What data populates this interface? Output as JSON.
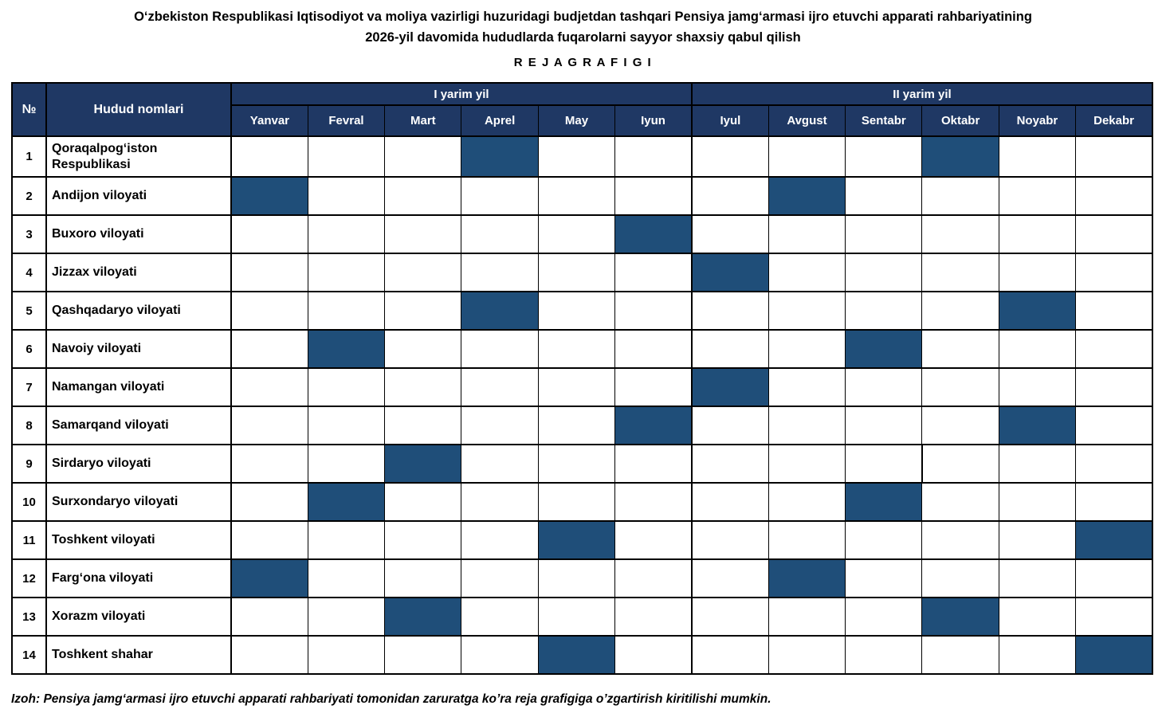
{
  "title": {
    "line1": "O‘zbekiston Respublikasi Iqtisodiyot va moliya vazirligi huzuridagi budjetdan tashqari Pensiya jamg‘armasi ijro etuvchi apparati rahbariyatining",
    "line2": "2026-yil davomida hududlarda fuqarolarni sayyor shaxsiy qabul qilish",
    "line3": "R E J A  G R A F I G I"
  },
  "table": {
    "col_no_header": "№",
    "col_region_header": "Hudud nomlari",
    "half_year_headers": [
      "I yarim yil",
      "II yarim yil"
    ],
    "months": [
      "Yanvar",
      "Fevral",
      "Mart",
      "Aprel",
      "May",
      "Iyun",
      "Iyul",
      "Avgust",
      "Sentabr",
      "Oktabr",
      "Noyabr",
      "Dekabr"
    ],
    "rows": [
      {
        "no": "1",
        "region": "Qoraqalpog‘iston Respublikasi",
        "filled_months": [
          "Aprel",
          "Oktabr"
        ]
      },
      {
        "no": "2",
        "region": "Andijon viloyati",
        "filled_months": [
          "Yanvar",
          "Avgust"
        ]
      },
      {
        "no": "3",
        "region": "Buxoro viloyati",
        "filled_months": [
          "Iyun"
        ]
      },
      {
        "no": "4",
        "region": "Jizzax viloyati",
        "filled_months": [
          "Iyul"
        ]
      },
      {
        "no": "5",
        "region": "Qashqadaryo viloyati",
        "filled_months": [
          "Aprel",
          "Noyabr"
        ]
      },
      {
        "no": "6",
        "region": "Navoiy viloyati",
        "filled_months": [
          "Fevral",
          "Sentabr"
        ]
      },
      {
        "no": "7",
        "region": "Namangan viloyati",
        "filled_months": [
          "Iyul"
        ]
      },
      {
        "no": "8",
        "region": "Samarqand viloyati",
        "filled_months": [
          "Iyun",
          "Noyabr"
        ]
      },
      {
        "no": "9",
        "region": "Sirdaryo viloyati",
        "filled_months": [
          "Mart"
        ]
      },
      {
        "no": "10",
        "region": "Surxondaryo viloyati",
        "filled_months": [
          "Fevral",
          "Sentabr"
        ]
      },
      {
        "no": "11",
        "region": "Toshkent viloyati",
        "filled_months": [
          "May",
          "Dekabr"
        ]
      },
      {
        "no": "12",
        "region": "Farg‘ona viloyati",
        "filled_months": [
          "Yanvar",
          "Avgust"
        ]
      },
      {
        "no": "13",
        "region": "Xorazm viloyati",
        "filled_months": [
          "Mart",
          "Oktabr"
        ]
      },
      {
        "no": "14",
        "region": "Toshkent shahar",
        "filled_months": [
          "May",
          "Dekabr"
        ]
      }
    ]
  },
  "footer_note": "Izoh: Pensiya jamg‘armasi ijro etuvchi apparati rahbariyati tomonidan zaruratga ko’ra reja grafigiga o’zgartirish kiritilishi mumkin.",
  "colors": {
    "header_bg": "#1F3864",
    "filled_cell": "#1F4E79",
    "header_text": "#FFFFFF",
    "body_text": "#000000",
    "border": "#000000"
  }
}
